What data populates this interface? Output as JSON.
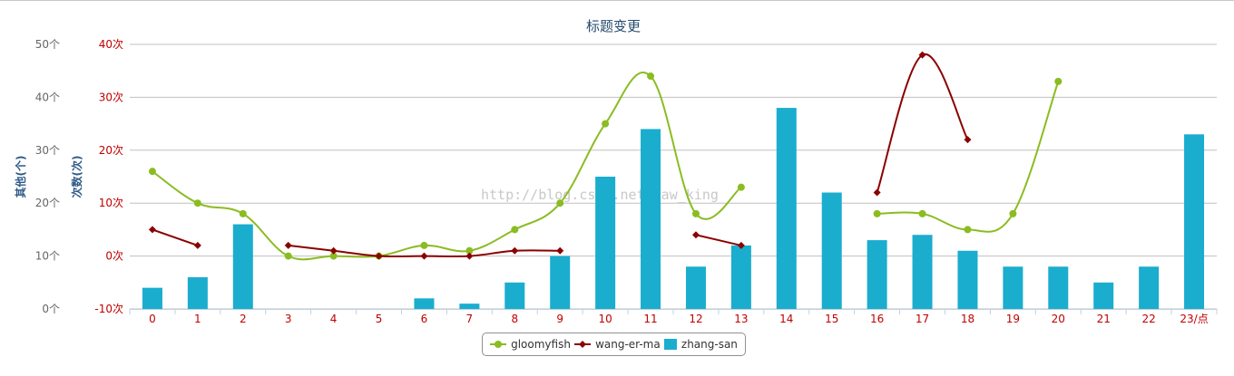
{
  "chart_data": {
    "type": "bar",
    "title": "标题变更",
    "categories": [
      "0",
      "1",
      "2",
      "3",
      "4",
      "5",
      "6",
      "7",
      "8",
      "9",
      "10",
      "11",
      "12",
      "13",
      "14",
      "15",
      "16",
      "17",
      "18",
      "19",
      "20",
      "21",
      "22",
      "23/点"
    ],
    "y_axes": [
      {
        "id": "left_outer",
        "label": "其他(个)",
        "min": 0,
        "max": 50,
        "ticks": [
          "0个",
          "10个",
          "20个",
          "30个",
          "40个",
          "50个"
        ],
        "color": "#2d5a86"
      },
      {
        "id": "left_inner",
        "label": "次数(次)",
        "min": -10,
        "max": 40,
        "ticks": [
          "-10次",
          "0次",
          "10次",
          "20次",
          "30次",
          "40次"
        ],
        "color": "#c00000"
      }
    ],
    "series": [
      {
        "name": "gloomyfish",
        "type": "line",
        "axis": "left_inner",
        "color": "#8bbc21",
        "values": [
          16,
          10,
          8,
          0,
          0,
          0,
          2,
          1,
          5,
          10,
          25,
          34,
          8,
          13,
          null,
          null,
          8,
          8,
          5,
          8,
          33,
          null,
          null,
          null
        ]
      },
      {
        "name": "wang-er-ma",
        "type": "line",
        "axis": "left_inner",
        "color": "#8b0000",
        "values": [
          5,
          2,
          null,
          2,
          1,
          0,
          0,
          0,
          1,
          1,
          null,
          null,
          4,
          2,
          null,
          null,
          12,
          38,
          22,
          null,
          null,
          null,
          null,
          null
        ]
      },
      {
        "name": "zhang-san",
        "type": "bar",
        "axis": "left_outer",
        "color": "#1aadce",
        "values": [
          4,
          6,
          16,
          0,
          0,
          0,
          2,
          1,
          5,
          10,
          25,
          34,
          8,
          12,
          38,
          22,
          13,
          14,
          11,
          8,
          8,
          5,
          8,
          33
        ]
      }
    ],
    "grid": true,
    "legend_position": "bottom-center"
  },
  "watermark": "http://blog.csdn.net/jaw_king",
  "legend": {
    "items": [
      "gloomyfish",
      "wang-er-ma",
      "zhang-san"
    ]
  }
}
